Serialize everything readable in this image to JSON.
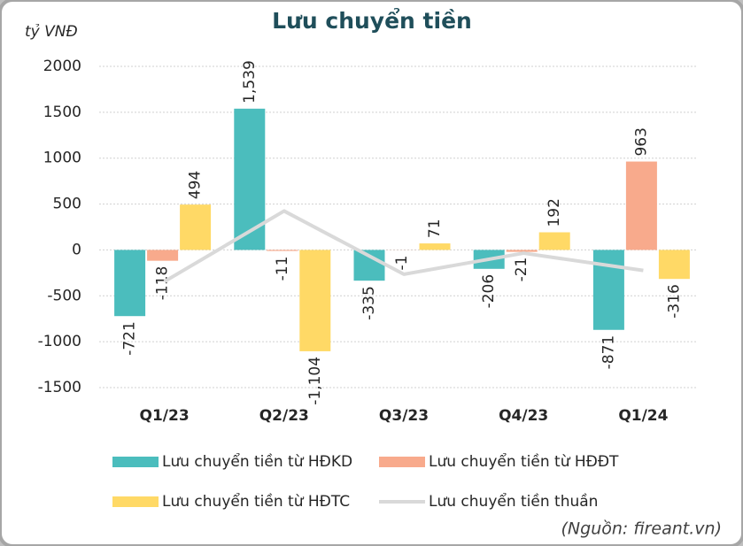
{
  "chart_data": {
    "type": "bar",
    "title": "Lưu chuyển tiền",
    "y_axis_label": "tỷ VNĐ",
    "source": "(Nguồn: fireant.vn)",
    "categories": [
      "Q1/23",
      "Q2/23",
      "Q3/23",
      "Q4/23",
      "Q1/24"
    ],
    "series": [
      {
        "name": "Lưu chuyển tiền từ HĐKD",
        "color": "#4bbdbd",
        "values": [
          -721,
          1539,
          -335,
          -206,
          -871
        ],
        "value_labels": [
          "-721",
          "1,539",
          "-335",
          "-206",
          "-871"
        ]
      },
      {
        "name": "Lưu chuyển tiền từ HĐĐT",
        "color": "#f8aa8c",
        "values": [
          -118,
          -11,
          -1,
          -21,
          963
        ],
        "value_labels": [
          "-118",
          "-11",
          "-1",
          "-21",
          "963"
        ]
      },
      {
        "name": "Lưu chuyển tiền từ HĐTC",
        "color": "#ffd966",
        "values": [
          494,
          -1104,
          71,
          192,
          -316
        ],
        "value_labels": [
          "494",
          "-1,104",
          "71",
          "192",
          "-316"
        ]
      },
      {
        "name": "Lưu chuyển tiền thuần",
        "color": "#d9d9d9",
        "type": "line",
        "values": [
          -345,
          424,
          -265,
          -35,
          -224
        ]
      }
    ],
    "ylim": [
      -1500,
      2000
    ],
    "yticks": [
      -1500,
      -1000,
      -500,
      0,
      500,
      1000,
      1500,
      2000
    ],
    "grid": true
  }
}
